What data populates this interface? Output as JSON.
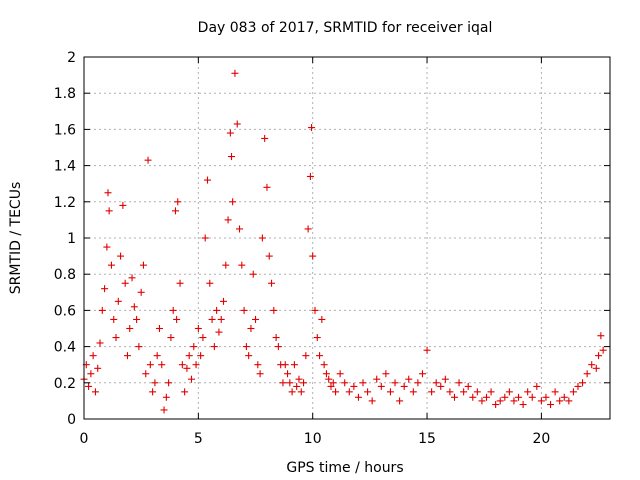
{
  "chart_data": {
    "type": "scatter",
    "title": "Day 083 of 2017, SRMTID for receiver iqal",
    "xlabel": "GPS time / hours",
    "ylabel": "SRMTID / TECUs",
    "xlim": [
      0,
      23
    ],
    "ylim": [
      0,
      2
    ],
    "xticks": [
      "0",
      "5",
      "10",
      "15",
      "20"
    ],
    "yticks": [
      "0",
      "0.2",
      "0.4",
      "0.6",
      "0.8",
      "1",
      "1.2",
      "1.4",
      "1.6",
      "1.8",
      "2"
    ],
    "grid": true,
    "marker": "+",
    "color": "#e00000",
    "series": [
      {
        "name": "SRMTID",
        "points": [
          [
            0.0,
            0.22
          ],
          [
            0.1,
            0.3
          ],
          [
            0.2,
            0.18
          ],
          [
            0.3,
            0.25
          ],
          [
            0.4,
            0.35
          ],
          [
            0.5,
            0.15
          ],
          [
            0.6,
            0.28
          ],
          [
            0.7,
            0.42
          ],
          [
            0.8,
            0.6
          ],
          [
            0.9,
            0.72
          ],
          [
            1.0,
            0.95
          ],
          [
            1.05,
            1.25
          ],
          [
            1.1,
            1.15
          ],
          [
            1.2,
            0.85
          ],
          [
            1.3,
            0.55
          ],
          [
            1.4,
            0.45
          ],
          [
            1.5,
            0.65
          ],
          [
            1.6,
            0.9
          ],
          [
            1.7,
            1.18
          ],
          [
            1.8,
            0.75
          ],
          [
            1.9,
            0.35
          ],
          [
            2.0,
            0.5
          ],
          [
            2.1,
            0.78
          ],
          [
            2.2,
            0.62
          ],
          [
            2.3,
            0.55
          ],
          [
            2.4,
            0.4
          ],
          [
            2.5,
            0.7
          ],
          [
            2.6,
            0.85
          ],
          [
            2.7,
            0.25
          ],
          [
            2.8,
            1.43
          ],
          [
            2.9,
            0.3
          ],
          [
            3.0,
            0.15
          ],
          [
            3.1,
            0.2
          ],
          [
            3.2,
            0.35
          ],
          [
            3.3,
            0.5
          ],
          [
            3.4,
            0.3
          ],
          [
            3.5,
            0.05
          ],
          [
            3.6,
            0.12
          ],
          [
            3.7,
            0.2
          ],
          [
            3.8,
            0.45
          ],
          [
            3.9,
            0.6
          ],
          [
            4.0,
            1.15
          ],
          [
            4.05,
            0.55
          ],
          [
            4.1,
            1.2
          ],
          [
            4.2,
            0.75
          ],
          [
            4.3,
            0.3
          ],
          [
            4.4,
            0.15
          ],
          [
            4.5,
            0.28
          ],
          [
            4.6,
            0.35
          ],
          [
            4.7,
            0.22
          ],
          [
            4.8,
            0.4
          ],
          [
            4.9,
            0.3
          ],
          [
            5.0,
            0.5
          ],
          [
            5.1,
            0.35
          ],
          [
            5.2,
            0.45
          ],
          [
            5.3,
            1.0
          ],
          [
            5.4,
            1.32
          ],
          [
            5.5,
            0.75
          ],
          [
            5.6,
            0.55
          ],
          [
            5.7,
            0.4
          ],
          [
            5.8,
            0.6
          ],
          [
            5.9,
            0.48
          ],
          [
            6.0,
            0.55
          ],
          [
            6.1,
            0.65
          ],
          [
            6.2,
            0.85
          ],
          [
            6.3,
            1.1
          ],
          [
            6.4,
            1.58
          ],
          [
            6.45,
            1.45
          ],
          [
            6.5,
            1.2
          ],
          [
            6.6,
            1.91
          ],
          [
            6.7,
            1.63
          ],
          [
            6.8,
            1.05
          ],
          [
            6.9,
            0.85
          ],
          [
            7.0,
            0.6
          ],
          [
            7.1,
            0.4
          ],
          [
            7.2,
            0.35
          ],
          [
            7.3,
            0.5
          ],
          [
            7.4,
            0.8
          ],
          [
            7.5,
            0.55
          ],
          [
            7.6,
            0.3
          ],
          [
            7.7,
            0.25
          ],
          [
            7.8,
            1.0
          ],
          [
            7.9,
            1.55
          ],
          [
            8.0,
            1.28
          ],
          [
            8.1,
            0.9
          ],
          [
            8.2,
            0.75
          ],
          [
            8.3,
            0.6
          ],
          [
            8.4,
            0.45
          ],
          [
            8.5,
            0.4
          ],
          [
            8.6,
            0.3
          ],
          [
            8.7,
            0.2
          ],
          [
            8.8,
            0.3
          ],
          [
            8.9,
            0.25
          ],
          [
            9.0,
            0.2
          ],
          [
            9.1,
            0.15
          ],
          [
            9.2,
            0.3
          ],
          [
            9.3,
            0.18
          ],
          [
            9.4,
            0.22
          ],
          [
            9.5,
            0.15
          ],
          [
            9.6,
            0.2
          ],
          [
            9.7,
            0.35
          ],
          [
            9.8,
            1.05
          ],
          [
            9.9,
            1.34
          ],
          [
            9.95,
            1.61
          ],
          [
            10.0,
            0.9
          ],
          [
            10.1,
            0.6
          ],
          [
            10.2,
            0.45
          ],
          [
            10.3,
            0.35
          ],
          [
            10.4,
            0.55
          ],
          [
            10.5,
            0.3
          ],
          [
            10.6,
            0.25
          ],
          [
            10.7,
            0.22
          ],
          [
            10.8,
            0.18
          ],
          [
            10.9,
            0.2
          ],
          [
            11.0,
            0.15
          ],
          [
            11.2,
            0.25
          ],
          [
            11.4,
            0.2
          ],
          [
            11.6,
            0.15
          ],
          [
            11.8,
            0.18
          ],
          [
            12.0,
            0.12
          ],
          [
            12.2,
            0.2
          ],
          [
            12.4,
            0.15
          ],
          [
            12.6,
            0.1
          ],
          [
            12.8,
            0.22
          ],
          [
            13.0,
            0.18
          ],
          [
            13.2,
            0.25
          ],
          [
            13.4,
            0.15
          ],
          [
            13.6,
            0.2
          ],
          [
            13.8,
            0.1
          ],
          [
            14.0,
            0.18
          ],
          [
            14.2,
            0.22
          ],
          [
            14.4,
            0.15
          ],
          [
            14.6,
            0.2
          ],
          [
            14.8,
            0.25
          ],
          [
            15.0,
            0.38
          ],
          [
            15.2,
            0.15
          ],
          [
            15.4,
            0.2
          ],
          [
            15.6,
            0.18
          ],
          [
            15.8,
            0.22
          ],
          [
            16.0,
            0.15
          ],
          [
            16.2,
            0.12
          ],
          [
            16.4,
            0.2
          ],
          [
            16.6,
            0.15
          ],
          [
            16.8,
            0.18
          ],
          [
            17.0,
            0.12
          ],
          [
            17.2,
            0.15
          ],
          [
            17.4,
            0.1
          ],
          [
            17.6,
            0.12
          ],
          [
            17.8,
            0.15
          ],
          [
            18.0,
            0.08
          ],
          [
            18.2,
            0.1
          ],
          [
            18.4,
            0.12
          ],
          [
            18.6,
            0.15
          ],
          [
            18.8,
            0.1
          ],
          [
            19.0,
            0.12
          ],
          [
            19.2,
            0.08
          ],
          [
            19.4,
            0.15
          ],
          [
            19.6,
            0.12
          ],
          [
            19.8,
            0.18
          ],
          [
            20.0,
            0.1
          ],
          [
            20.2,
            0.12
          ],
          [
            20.4,
            0.08
          ],
          [
            20.6,
            0.15
          ],
          [
            20.8,
            0.1
          ],
          [
            21.0,
            0.12
          ],
          [
            21.2,
            0.1
          ],
          [
            21.4,
            0.15
          ],
          [
            21.6,
            0.18
          ],
          [
            21.8,
            0.2
          ],
          [
            22.0,
            0.25
          ],
          [
            22.2,
            0.3
          ],
          [
            22.4,
            0.28
          ],
          [
            22.5,
            0.35
          ],
          [
            22.6,
            0.46
          ],
          [
            22.7,
            0.38
          ]
        ]
      }
    ]
  }
}
